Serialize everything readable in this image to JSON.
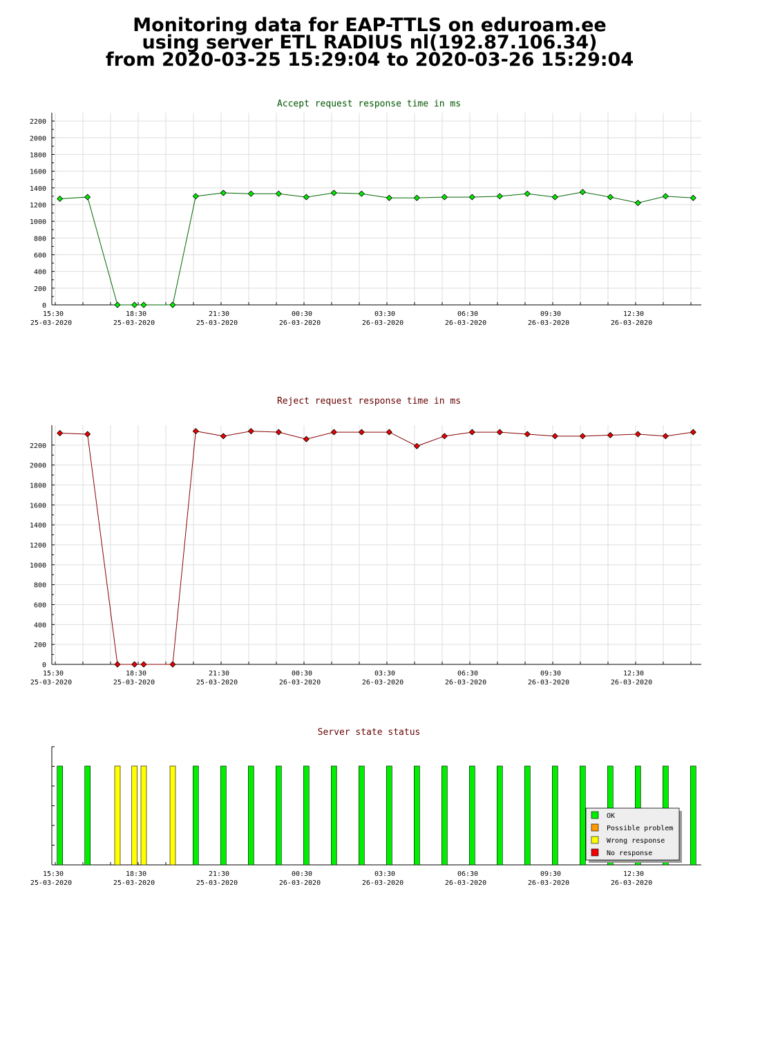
{
  "title_lines": [
    "Monitoring data for EAP-TTLS on eduroam.ee",
    "using server ETL RADIUS nl(192.87.106.34)",
    "from 2020-03-25 15:29:04 to 2020-03-26 15:29:04"
  ],
  "colors": {
    "grid": "#dddddd",
    "accept_line": "#006600",
    "accept_point": "#00ee00",
    "reject_line": "#880000",
    "reject_point": "#ee0000",
    "accept_title": "#005500",
    "reject_title": "#660000",
    "status_title": "#660000",
    "ok": "#00ee00",
    "possible_problem": "#ff9900",
    "wrong_response": "#ffff00",
    "no_response": "#ee0000"
  },
  "time_axis": [
    {
      "time": "15:30",
      "date": "25-03-2020"
    },
    {
      "time": "18:30",
      "date": "25-03-2020"
    },
    {
      "time": "21:30",
      "date": "25-03-2020"
    },
    {
      "time": "00:30",
      "date": "26-03-2020"
    },
    {
      "time": "03:30",
      "date": "26-03-2020"
    },
    {
      "time": "06:30",
      "date": "26-03-2020"
    },
    {
      "time": "09:30",
      "date": "26-03-2020"
    },
    {
      "time": "12:30",
      "date": "26-03-2020"
    }
  ],
  "chart_data": [
    {
      "type": "line",
      "title": "Accept request response time in ms",
      "ylim": [
        0,
        2300
      ],
      "yticks": [
        0,
        200,
        400,
        600,
        800,
        1000,
        1200,
        1400,
        1600,
        1800,
        2000,
        2200
      ],
      "x": [
        "2020-03-25 15:40",
        "2020-03-25 16:40",
        "2020-03-25 17:45",
        "2020-03-25 18:22",
        "2020-03-25 18:42",
        "2020-03-25 19:45",
        "2020-03-25 20:35",
        "2020-03-25 21:35",
        "2020-03-25 22:35",
        "2020-03-25 23:35",
        "2020-03-26 00:35",
        "2020-03-26 01:35",
        "2020-03-26 02:35",
        "2020-03-26 03:35",
        "2020-03-26 04:35",
        "2020-03-26 05:35",
        "2020-03-26 06:35",
        "2020-03-26 07:35",
        "2020-03-26 08:35",
        "2020-03-26 09:35",
        "2020-03-26 10:35",
        "2020-03-26 11:35",
        "2020-03-26 12:35",
        "2020-03-26 13:35",
        "2020-03-26 14:35"
      ],
      "values": [
        1270,
        1290,
        0,
        0,
        0,
        0,
        1300,
        1340,
        1330,
        1330,
        1290,
        1340,
        1330,
        1280,
        1280,
        1290,
        1290,
        1300,
        1330,
        1290,
        1350,
        1290,
        1220,
        1300,
        1280
      ]
    },
    {
      "type": "line",
      "title": "Reject request response time in ms",
      "ylim": [
        0,
        2400
      ],
      "yticks": [
        0,
        200,
        400,
        600,
        800,
        1000,
        1200,
        1400,
        1600,
        1800,
        2000,
        2200
      ],
      "x": [
        "2020-03-25 15:40",
        "2020-03-25 16:40",
        "2020-03-25 17:45",
        "2020-03-25 18:22",
        "2020-03-25 18:42",
        "2020-03-25 19:45",
        "2020-03-25 20:35",
        "2020-03-25 21:35",
        "2020-03-25 22:35",
        "2020-03-25 23:35",
        "2020-03-26 00:35",
        "2020-03-26 01:35",
        "2020-03-26 02:35",
        "2020-03-26 03:35",
        "2020-03-26 04:35",
        "2020-03-26 05:35",
        "2020-03-26 06:35",
        "2020-03-26 07:35",
        "2020-03-26 08:35",
        "2020-03-26 09:35",
        "2020-03-26 10:35",
        "2020-03-26 11:35",
        "2020-03-26 12:35",
        "2020-03-26 13:35",
        "2020-03-26 14:35"
      ],
      "values": [
        2320,
        2310,
        0,
        0,
        0,
        0,
        2340,
        2290,
        2340,
        2330,
        2260,
        2330,
        2330,
        2330,
        2190,
        2290,
        2330,
        2330,
        2310,
        2290,
        2290,
        2300,
        2310,
        2290,
        2330
      ]
    },
    {
      "type": "bar",
      "title": "Server state status",
      "x": [
        "2020-03-25 15:40",
        "2020-03-25 16:40",
        "2020-03-25 17:45",
        "2020-03-25 18:22",
        "2020-03-25 18:42",
        "2020-03-25 19:45",
        "2020-03-25 20:35",
        "2020-03-25 21:35",
        "2020-03-25 22:35",
        "2020-03-25 23:35",
        "2020-03-26 00:35",
        "2020-03-26 01:35",
        "2020-03-26 02:35",
        "2020-03-26 03:35",
        "2020-03-26 04:35",
        "2020-03-26 05:35",
        "2020-03-26 06:35",
        "2020-03-26 07:35",
        "2020-03-26 08:35",
        "2020-03-26 09:35",
        "2020-03-26 10:35",
        "2020-03-26 11:35",
        "2020-03-26 12:35",
        "2020-03-26 13:35",
        "2020-03-26 14:35"
      ],
      "states": [
        "ok",
        "ok",
        "wrong_response",
        "wrong_response",
        "wrong_response",
        "wrong_response",
        "ok",
        "ok",
        "ok",
        "ok",
        "ok",
        "ok",
        "ok",
        "ok",
        "ok",
        "ok",
        "ok",
        "ok",
        "ok",
        "ok",
        "ok",
        "ok",
        "ok",
        "ok",
        "ok"
      ],
      "legend": [
        {
          "key": "ok",
          "label": "OK"
        },
        {
          "key": "possible_problem",
          "label": "Possible problem"
        },
        {
          "key": "wrong_response",
          "label": "Wrong response"
        },
        {
          "key": "no_response",
          "label": "No response"
        }
      ],
      "legend_position": "bottom-right"
    }
  ]
}
